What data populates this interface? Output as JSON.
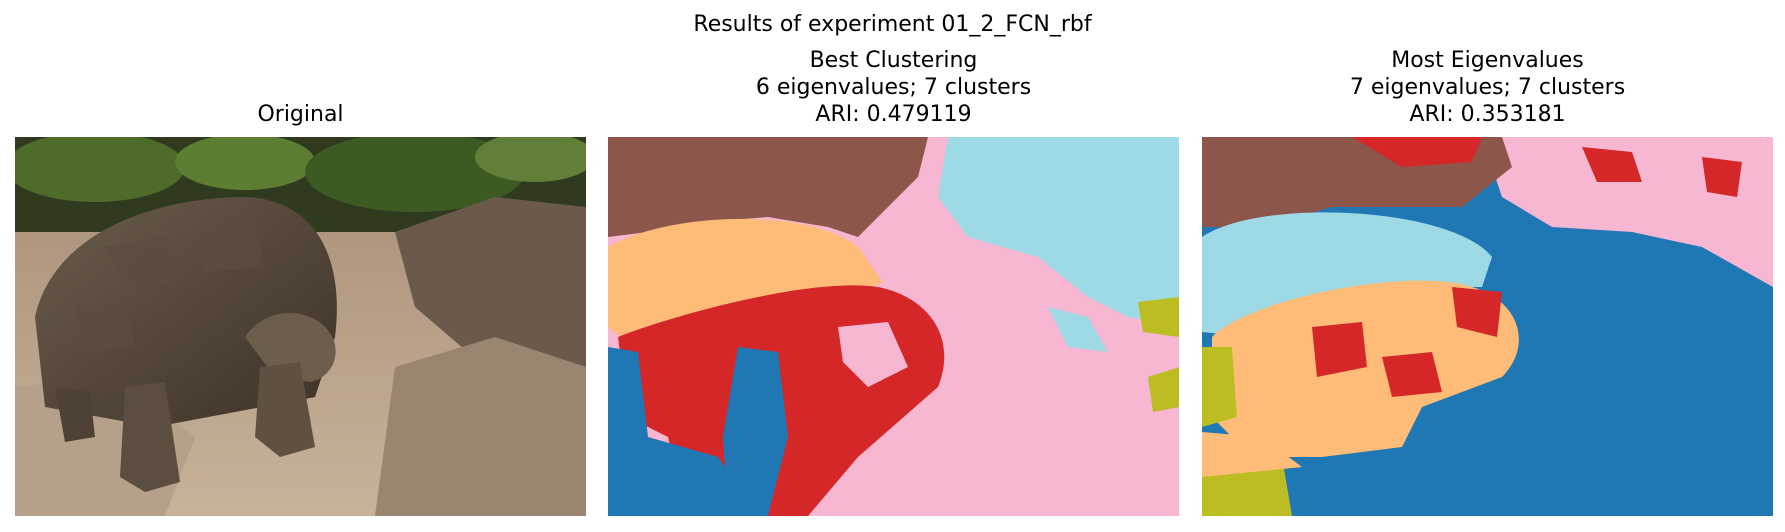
{
  "figure": {
    "suptitle": "Results of experiment 01_2_FCN_rbf"
  },
  "panels": [
    {
      "title_lines": [
        "Original"
      ],
      "kind": "photo"
    },
    {
      "title_lines": [
        "Best Clustering",
        "6 eigenvalues; 7 clusters",
        "ARI: 0.479119"
      ],
      "kind": "segmentation"
    },
    {
      "title_lines": [
        "Most Eigenvalues",
        "7 eigenvalues; 7 clusters",
        "ARI: 0.353181"
      ],
      "kind": "segmentation"
    }
  ],
  "palette": {
    "brown": "#8c564b",
    "cyan": "#9edae5",
    "pink": "#f7b6d2",
    "peach": "#ffbb78",
    "red": "#d62728",
    "blue": "#1f77b4",
    "olive": "#bcbd22"
  }
}
